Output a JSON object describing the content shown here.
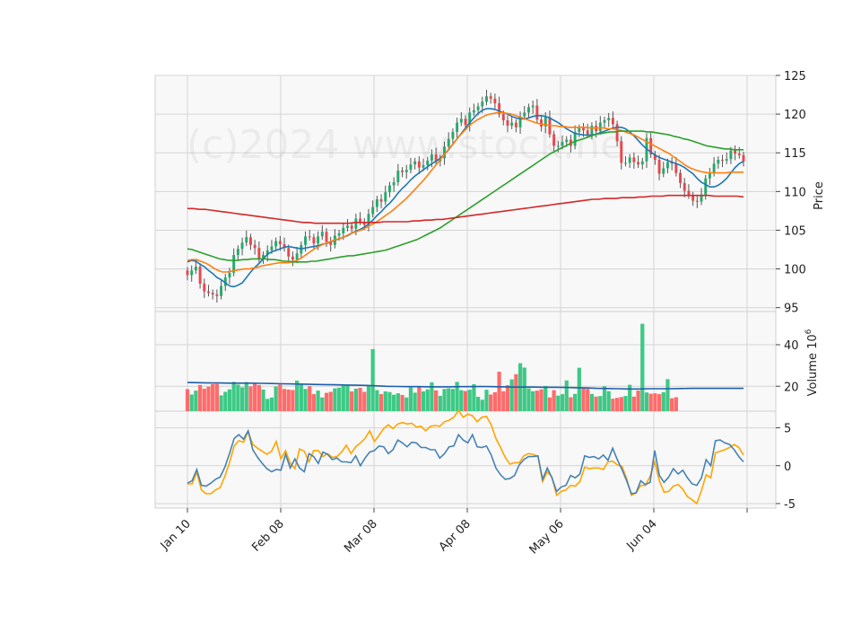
{
  "chart_data": {
    "type": "candlestick",
    "watermark": "(c)2024 www.stock.ne",
    "x_tick_labels": [
      "Jan 10",
      "Feb 08",
      "Mar 08",
      "Apr 08",
      "May 06",
      "Jun 04"
    ],
    "price_panel": {
      "ylabel": "Price",
      "ylim": [
        94.5,
        125
      ],
      "yticks": [
        95,
        100,
        105,
        110,
        115,
        120,
        125
      ],
      "up_color": "#26a96c",
      "down_color": "#e8474b",
      "closes": [
        99.2,
        99.8,
        100.3,
        98.1,
        97.1,
        96.9,
        96.7,
        96.5,
        97.8,
        98.9,
        99.5,
        101.8,
        102.6,
        103.4,
        104.1,
        103.1,
        102.7,
        101.3,
        101.8,
        102.4,
        102.9,
        103.6,
        103.2,
        102.7,
        101.6,
        101.2,
        102.0,
        103.1,
        104.2,
        104.1,
        103.3,
        104.2,
        104.8,
        103.5,
        103.1,
        104.3,
        104.6,
        105.3,
        105.6,
        105.2,
        106.5,
        106.1,
        105.7,
        107.1,
        108.0,
        109.0,
        108.7,
        109.9,
        110.8,
        111.2,
        112.7,
        112.5,
        112.8,
        113.5,
        113.9,
        113.1,
        113.4,
        114.0,
        114.8,
        113.9,
        114.3,
        115.8,
        116.8,
        117.7,
        118.9,
        119.4,
        118.6,
        120.2,
        120.5,
        121.0,
        121.6,
        122.3,
        122.0,
        121.4,
        120.0,
        119.2,
        118.5,
        118.9,
        118.3,
        119.7,
        120.2,
        120.9,
        121.1,
        119.3,
        118.4,
        119.6,
        117.4,
        115.9,
        115.9,
        116.4,
        116.7,
        115.9,
        117.7,
        118.2,
        117.9,
        117.4,
        118.5,
        117.8,
        118.9,
        119.2,
        119.5,
        118.7,
        116.5,
        113.7,
        113.7,
        114.4,
        113.8,
        113.5,
        113.9,
        116.9,
        114.8,
        114.1,
        112.3,
        113.0,
        113.8,
        113.6,
        112.4,
        111.1,
        110.1,
        109.5,
        108.8,
        108.7,
        109.6,
        111.7,
        112.4,
        113.6,
        114.1,
        114.0,
        114.2,
        115.3,
        114.9,
        114.7,
        113.9
      ],
      "sma_fast_ch": [
        100.9,
        101.1,
        101.0,
        100.6,
        100.3,
        99.8,
        99.4,
        98.9,
        98.6,
        98.2,
        97.8,
        97.7,
        97.9,
        98.2,
        98.9,
        99.6,
        100.2,
        100.7,
        101.3,
        101.9,
        102.2,
        102.4,
        102.6,
        102.8,
        102.9,
        102.8,
        102.7,
        102.6,
        102.7,
        102.8,
        102.9,
        103.0,
        103.2,
        103.3,
        103.5,
        103.7,
        103.9,
        104.1,
        104.3,
        104.6,
        104.9,
        105.1,
        105.4,
        105.8,
        106.3,
        106.9,
        107.4,
        108.0,
        108.5,
        109.1,
        109.8,
        110.4,
        110.9,
        111.5,
        112.0,
        112.4,
        112.8,
        113.2,
        113.6,
        113.9,
        114.3,
        114.8,
        115.4,
        116.1,
        116.8,
        117.5,
        118.2,
        118.9,
        119.5,
        120.1,
        120.5,
        120.7,
        120.7,
        120.6,
        120.4,
        120.2,
        120.0,
        119.7,
        119.5,
        119.4,
        119.4,
        119.5,
        119.7,
        119.8,
        119.8,
        119.7,
        119.5,
        119.2,
        118.9,
        118.5,
        118.1,
        117.8,
        117.5,
        117.4,
        117.3,
        117.3,
        117.3,
        117.4,
        117.6,
        117.8,
        118.0,
        118.2,
        118.3,
        118.3,
        118.1,
        117.7,
        117.2,
        116.6,
        116.0,
        115.5,
        115.1,
        114.7,
        114.4,
        114.2,
        114.0,
        113.8,
        113.6,
        113.4,
        113.1,
        112.7,
        112.3,
        111.7,
        111.2,
        110.9,
        110.6,
        110.6,
        110.8,
        111.2,
        111.7,
        112.4,
        113.1,
        113.6,
        113.9
      ],
      "sma_mid_ch": [
        101.1,
        101.2,
        101.2,
        101.0,
        100.8,
        100.5,
        100.1,
        99.8,
        99.6,
        99.6,
        99.7,
        99.8,
        99.9,
        100.0,
        100.0,
        100.1,
        100.2,
        100.4,
        100.5,
        100.6,
        100.7,
        100.8,
        100.8,
        100.8,
        100.9,
        101.1,
        101.4,
        101.8,
        102.2,
        102.6,
        102.9,
        103.2,
        103.4,
        103.6,
        103.8,
        104.0,
        104.2,
        104.5,
        104.7,
        104.9,
        105.1,
        105.4,
        105.7,
        106.0,
        106.4,
        106.8,
        107.2,
        107.6,
        108.1,
        108.6,
        109.1,
        109.7,
        110.3,
        110.9,
        111.5,
        112.2,
        112.9,
        113.6,
        114.3,
        115.0,
        115.7,
        116.4,
        117.1,
        117.7,
        118.3,
        118.8,
        119.2,
        119.5,
        119.8,
        120.0,
        120.1,
        120.2,
        120.2,
        120.1,
        120.0,
        119.8,
        119.6,
        119.4,
        119.2,
        119.0,
        118.8,
        118.7,
        118.6,
        118.5,
        118.5,
        118.4,
        118.4,
        118.3,
        118.3,
        118.3,
        118.3,
        118.3,
        118.2,
        118.2,
        118.2,
        118.2,
        118.1,
        118.1,
        118.0,
        117.9,
        117.7,
        117.5,
        117.3,
        117.0,
        116.7,
        116.4,
        116.1,
        115.8,
        115.5,
        115.2,
        114.9,
        114.5,
        114.1,
        113.7,
        113.3,
        113.0,
        112.8,
        112.6,
        112.5,
        112.4,
        112.4,
        112.4,
        112.4,
        112.4,
        112.5,
        112.5,
        112.5,
        112.5
      ],
      "sma_slow_ch": [
        102.6,
        102.5,
        102.3,
        102.1,
        101.9,
        101.7,
        101.5,
        101.3,
        101.2,
        101.1,
        101.1,
        101.1,
        101.2,
        101.2,
        101.3,
        101.3,
        101.3,
        101.3,
        101.2,
        101.2,
        101.1,
        101.0,
        101.0,
        100.9,
        100.9,
        100.9,
        100.9,
        101.0,
        101.0,
        101.1,
        101.2,
        101.3,
        101.4,
        101.5,
        101.6,
        101.7,
        101.7,
        101.8,
        101.9,
        102.0,
        102.1,
        102.2,
        102.3,
        102.4,
        102.6,
        102.8,
        103.0,
        103.2,
        103.4,
        103.6,
        103.8,
        104.1,
        104.4,
        104.7,
        105.0,
        105.3,
        105.7,
        106.1,
        106.5,
        106.9,
        107.3,
        107.7,
        108.1,
        108.5,
        108.9,
        109.3,
        109.7,
        110.1,
        110.5,
        110.9,
        111.3,
        111.7,
        112.1,
        112.5,
        112.9,
        113.3,
        113.7,
        114.1,
        114.5,
        114.9,
        115.2,
        115.5,
        115.8,
        116.1,
        116.4,
        116.6,
        116.8,
        117.0,
        117.2,
        117.4,
        117.5,
        117.6,
        117.7,
        117.7,
        117.8,
        117.8,
        117.8,
        117.8,
        117.8,
        117.8,
        117.7,
        117.7,
        117.6,
        117.5,
        117.4,
        117.3,
        117.1,
        117.0,
        116.8,
        116.7,
        116.5,
        116.3,
        116.1,
        115.9,
        115.8,
        115.7,
        115.6,
        115.5,
        115.5,
        115.4,
        115.4,
        115.4
      ],
      "sma_long_ch": [
        107.8,
        107.8,
        107.7,
        107.7,
        107.6,
        107.5,
        107.4,
        107.3,
        107.2,
        107.1,
        107.0,
        106.9,
        106.8,
        106.7,
        106.6,
        106.5,
        106.4,
        106.3,
        106.2,
        106.1,
        106.0,
        106.0,
        105.9,
        105.9,
        105.9,
        105.9,
        105.9,
        105.9,
        105.9,
        106.0,
        106.0,
        106.0,
        106.0,
        106.0,
        106.1,
        106.1,
        106.1,
        106.1,
        106.1,
        106.2,
        106.2,
        106.3,
        106.3,
        106.4,
        106.4,
        106.5,
        106.6,
        106.7,
        106.8,
        106.9,
        107.0,
        107.1,
        107.2,
        107.3,
        107.4,
        107.5,
        107.6,
        107.7,
        107.8,
        107.9,
        108.0,
        108.1,
        108.2,
        108.3,
        108.4,
        108.5,
        108.6,
        108.7,
        108.8,
        108.9,
        109.0,
        109.0,
        109.1,
        109.1,
        109.1,
        109.2,
        109.2,
        109.2,
        109.3,
        109.3,
        109.4,
        109.4,
        109.4,
        109.5,
        109.5,
        109.5,
        109.5,
        109.5,
        109.5,
        109.5,
        109.5,
        109.4,
        109.4,
        109.4,
        109.4,
        109.4,
        109.3
      ],
      "line_colors": [
        "#1f77b4",
        "#ff7f0e",
        "#2ca02c",
        "#d62728"
      ]
    },
    "volume_panel": {
      "ylabel": "Volume  10^6",
      "ylim": [
        8,
        56
      ],
      "yticks": [
        20,
        40
      ],
      "values": [
        18.6,
        16.0,
        17.9,
        20.6,
        18.8,
        19.8,
        21.0,
        21.1,
        15.6,
        17.3,
        18.5,
        22.1,
        20.8,
        19.5,
        22.0,
        19.9,
        21.4,
        20.6,
        18.4,
        13.9,
        14.6,
        19.9,
        20.8,
        18.7,
        18.4,
        18.2,
        22.7,
        21.1,
        18.7,
        20.0,
        16.2,
        17.9,
        14.6,
        16.8,
        17.3,
        19.0,
        19.3,
        20.4,
        20.8,
        17.5,
        18.8,
        19.2,
        17.3,
        20.4,
        37.9,
        18.1,
        16.2,
        17.5,
        17.2,
        15.9,
        16.6,
        15.8,
        14.6,
        19.4,
        16.9,
        19.6,
        17.5,
        18.5,
        21.9,
        18.0,
        15.4,
        18.7,
        19.0,
        18.7,
        22.1,
        18.1,
        17.7,
        18.3,
        21.0,
        14.9,
        13.5,
        18.3,
        16.0,
        17.1,
        27.0,
        17.6,
        20.5,
        23.3,
        25.8,
        31.1,
        29.0,
        19.0,
        17.6,
        17.9,
        18.5,
        20.1,
        14.6,
        18.1,
        15.5,
        16.2,
        22.8,
        14.7,
        16.3,
        28.9,
        19.4,
        18.7,
        16.3,
        15.0,
        15.3,
        20.0,
        17.6,
        14.0,
        14.4,
        14.8,
        15.3,
        20.7,
        15.0,
        17.9,
        50.1,
        17.0,
        16.4,
        16.6,
        16.2,
        17.1,
        23.4,
        14.2,
        14.7
      ],
      "avg_ch": [
        21.8,
        21.7,
        21.6,
        21.6,
        21.5,
        21.5,
        21.5,
        21.4,
        21.3,
        21.2,
        21.1,
        21.0,
        20.9,
        20.8,
        20.7,
        20.6,
        20.5,
        20.4,
        20.2,
        20.0,
        19.9,
        19.8,
        19.8,
        19.7,
        19.7,
        19.7,
        19.8,
        19.8,
        19.9,
        19.8,
        19.7,
        19.6,
        19.6,
        19.6,
        19.5,
        19.5,
        19.4,
        19.3,
        19.2,
        19.0,
        18.9,
        18.8,
        18.7,
        18.7,
        18.8,
        18.8,
        18.8,
        18.9,
        19.0,
        19.0,
        19.0,
        19.0,
        19.0,
        19.0
      ],
      "avg_color": "#1f5fa8"
    },
    "indicator_panel": {
      "ylim": [
        -5.6,
        7.2
      ],
      "yticks": [
        -5,
        0,
        5
      ],
      "series_a": [
        -2.3,
        -2.0,
        -0.5,
        -2.6,
        -2.7,
        -2.3,
        -1.8,
        -1.5,
        -0.2,
        1.6,
        3.6,
        4.1,
        3.5,
        4.6,
        2.1,
        1.1,
        0.3,
        -0.4,
        -0.8,
        -0.5,
        -0.6,
        1.5,
        -0.3,
        0.9,
        -0.3,
        -0.8,
        1.6,
        1.2,
        0.3,
        1.8,
        1.5,
        0.8,
        1.0,
        0.5,
        0.5,
        0.4,
        1.3,
        0.0,
        1.0,
        1.8,
        2.0,
        2.6,
        2.5,
        1.6,
        2.1,
        3.4,
        3.0,
        2.5,
        3.1,
        3.0,
        2.4,
        2.4,
        2.1,
        2.1,
        1.0,
        1.6,
        2.5,
        2.6,
        4.1,
        3.4,
        3.0,
        4.1,
        2.5,
        2.4,
        2.6,
        1.4,
        -0.3,
        -1.2,
        -1.8,
        -1.7,
        -1.3,
        0.1,
        0.8,
        1.2,
        1.2,
        1.3,
        -1.8,
        -0.3,
        -1.6,
        -3.4,
        -2.8,
        -2.6,
        -1.3,
        -1.6,
        -1.1,
        1.3,
        1.1,
        1.2,
        0.9,
        1.4,
        0.7,
        2.3,
        0.8,
        -0.5,
        -2.0,
        -3.7,
        -3.6,
        -2.0,
        -2.5,
        -2.2,
        2.0,
        -1.3,
        -2.2,
        -1.5,
        -0.4,
        -1.1,
        -0.6,
        -1.6,
        -2.4,
        -2.6,
        -1.6,
        0.8,
        0.0,
        3.3,
        3.4,
        3.0,
        2.8,
        2.1,
        1.2,
        0.5
      ],
      "series_b": [
        -2.4,
        -2.4,
        -0.9,
        -3.2,
        -3.7,
        -3.7,
        -3.2,
        -2.9,
        -1.4,
        0.4,
        2.6,
        3.3,
        3.1,
        4.5,
        2.8,
        2.3,
        1.9,
        1.5,
        1.9,
        3.2,
        0.9,
        2.0,
        0.3,
        -0.4,
        2.2,
        1.9,
        0.5,
        2.0,
        2.0,
        1.2,
        1.6,
        1.1,
        1.2,
        1.8,
        2.7,
        1.6,
        2.5,
        3.0,
        3.6,
        4.6,
        3.2,
        4.0,
        4.9,
        5.4,
        4.9,
        5.5,
        5.7,
        5.5,
        5.6,
        5.1,
        5.2,
        4.6,
        5.2,
        5.3,
        5.2,
        5.8,
        6.0,
        6.4,
        7.3,
        6.4,
        6.8,
        6.6,
        5.8,
        6.4,
        6.5,
        5.4,
        3.6,
        2.4,
        1.1,
        0.2,
        0.4,
        0.4,
        1.3,
        1.6,
        1.5,
        1.2,
        -2.1,
        -0.8,
        -1.5,
        -3.9,
        -3.4,
        -3.2,
        -2.6,
        -2.7,
        -2.1,
        -0.2,
        -0.4,
        -0.3,
        -0.3,
        -0.5,
        0.5,
        0.6,
        0.1,
        -0.1,
        -1.7,
        -3.9,
        -3.6,
        -2.6,
        -2.6,
        -1.4,
        0.5,
        -2.0,
        -3.5,
        -3.4,
        -2.7,
        -2.5,
        -3.1,
        -4.1,
        -4.5,
        -5.0,
        -3.3,
        -1.2,
        -1.6,
        1.7,
        1.9,
        2.1,
        2.4,
        2.8,
        2.4,
        1.4
      ],
      "color_a": "#4682b4",
      "color_b": "#ffa500"
    }
  }
}
